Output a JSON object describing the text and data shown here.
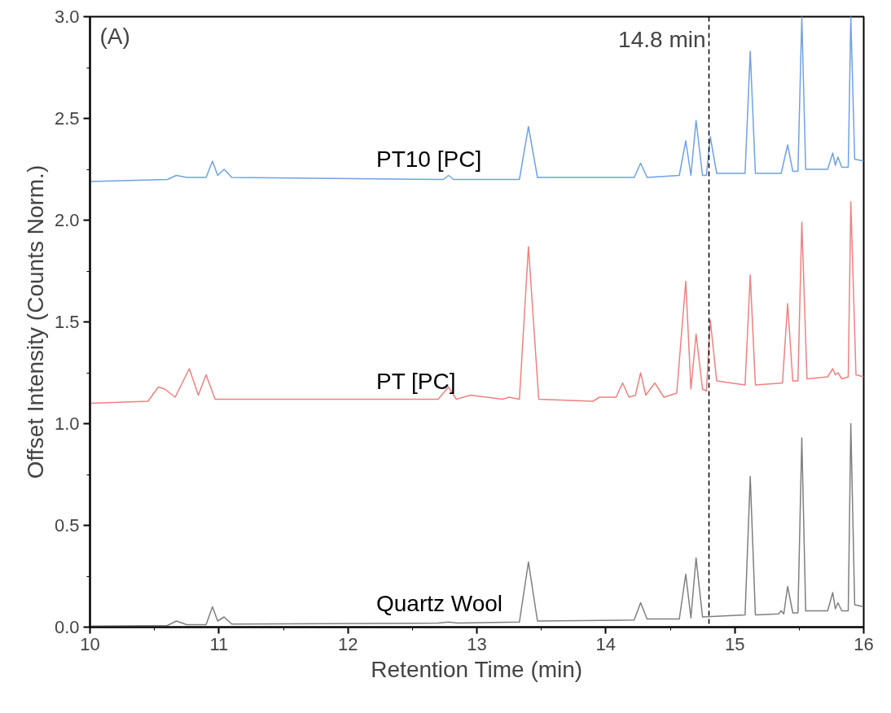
{
  "chart_data": {
    "type": "line",
    "xlabel": "Retention Time (min)",
    "ylabel": "Offset Intensity (Counts Norm.)",
    "xlim": [
      10,
      16
    ],
    "ylim": [
      0,
      3.0
    ],
    "xticks": [
      10,
      11,
      12,
      13,
      14,
      15,
      16
    ],
    "yticks": [
      {
        "value": 0,
        "label": "0.0"
      },
      {
        "value": 0.5,
        "label": "0.5"
      },
      {
        "value": 1.0,
        "label": "1.0"
      },
      {
        "value": 1.5,
        "label": "1.5"
      },
      {
        "value": 2.0,
        "label": "2.0"
      },
      {
        "value": 2.5,
        "label": "2.5"
      },
      {
        "value": 3.0,
        "label": "3.0"
      }
    ],
    "grid": false,
    "legend": false,
    "marker": "none",
    "line_style": "solid",
    "annotations": [
      "(A)"
    ],
    "ref_lines": [
      {
        "axis": "x",
        "value": 14.8,
        "label": "14.8 min",
        "color": "#000000",
        "line_style": "dashed"
      }
    ],
    "series": [
      {
        "name": "Quartz Wool",
        "color": "#7f7f7f",
        "x": [
          10,
          10.6,
          10.67,
          10.75,
          10.9,
          10.95,
          10.99,
          11.04,
          11.1,
          12.7,
          12.78,
          12.85,
          13.33,
          13.4,
          13.47,
          14.22,
          14.27,
          14.32,
          14.57,
          14.62,
          14.66,
          14.7,
          14.75,
          15.08,
          15.12,
          15.16,
          15.34,
          15.36,
          15.38,
          15.41,
          15.45,
          15.49,
          15.52,
          15.55,
          15.72,
          15.76,
          15.78,
          15.8,
          15.83,
          15.88,
          15.9,
          15.93,
          16
        ],
        "values": [
          0.005,
          0.008,
          0.03,
          0.012,
          0.012,
          0.1,
          0.03,
          0.05,
          0.015,
          0.02,
          0.025,
          0.02,
          0.025,
          0.32,
          0.03,
          0.035,
          0.12,
          0.04,
          0.04,
          0.26,
          0.045,
          0.34,
          0.05,
          0.06,
          0.74,
          0.06,
          0.065,
          0.08,
          0.065,
          0.2,
          0.07,
          0.07,
          0.93,
          0.08,
          0.08,
          0.17,
          0.09,
          0.12,
          0.08,
          0.08,
          1.0,
          0.11,
          0.1
        ]
      },
      {
        "name": "PT [PC]",
        "color": "#f08080",
        "x": [
          10,
          10.45,
          10.53,
          10.58,
          10.66,
          10.77,
          10.84,
          10.9,
          10.97,
          12.7,
          12.78,
          12.84,
          12.95,
          13.2,
          13.25,
          13.33,
          13.4,
          13.48,
          13.9,
          13.95,
          14.08,
          14.13,
          14.18,
          14.23,
          14.27,
          14.31,
          14.38,
          14.45,
          14.55,
          14.62,
          14.66,
          14.7,
          14.75,
          14.78,
          14.81,
          14.86,
          15.08,
          15.12,
          15.16,
          15.37,
          15.41,
          15.45,
          15.49,
          15.52,
          15.56,
          15.72,
          15.76,
          15.78,
          15.8,
          15.83,
          15.88,
          15.9,
          15.94,
          16
        ],
        "values": [
          1.1,
          1.11,
          1.18,
          1.17,
          1.13,
          1.27,
          1.14,
          1.24,
          1.12,
          1.12,
          1.18,
          1.12,
          1.14,
          1.12,
          1.13,
          1.12,
          1.87,
          1.12,
          1.11,
          1.13,
          1.13,
          1.2,
          1.13,
          1.14,
          1.25,
          1.14,
          1.2,
          1.13,
          1.15,
          1.7,
          1.17,
          1.44,
          1.17,
          1.16,
          1.51,
          1.21,
          1.19,
          1.73,
          1.19,
          1.2,
          1.59,
          1.21,
          1.21,
          1.99,
          1.22,
          1.23,
          1.27,
          1.24,
          1.25,
          1.22,
          1.23,
          2.09,
          1.24,
          1.23
        ]
      },
      {
        "name": "PT10 [PC]",
        "color": "#6fa0e8",
        "x": [
          10,
          10.6,
          10.67,
          10.75,
          10.9,
          10.95,
          10.99,
          11.04,
          11.1,
          12.74,
          12.78,
          12.82,
          13.33,
          13.4,
          13.47,
          14.22,
          14.27,
          14.32,
          14.57,
          14.62,
          14.66,
          14.7,
          14.75,
          14.78,
          14.81,
          14.86,
          15.08,
          15.12,
          15.16,
          15.36,
          15.41,
          15.45,
          15.49,
          15.52,
          15.55,
          15.72,
          15.76,
          15.78,
          15.8,
          15.83,
          15.88,
          15.9,
          15.93,
          16
        ],
        "values": [
          2.19,
          2.2,
          2.22,
          2.21,
          2.21,
          2.29,
          2.22,
          2.25,
          2.21,
          2.2,
          2.22,
          2.2,
          2.2,
          2.46,
          2.21,
          2.21,
          2.28,
          2.21,
          2.22,
          2.39,
          2.22,
          2.49,
          2.22,
          2.22,
          2.41,
          2.23,
          2.23,
          2.83,
          2.23,
          2.23,
          2.37,
          2.24,
          2.24,
          3.0,
          2.25,
          2.25,
          2.33,
          2.27,
          2.31,
          2.26,
          2.26,
          3.0,
          2.3,
          2.29
        ]
      }
    ]
  }
}
